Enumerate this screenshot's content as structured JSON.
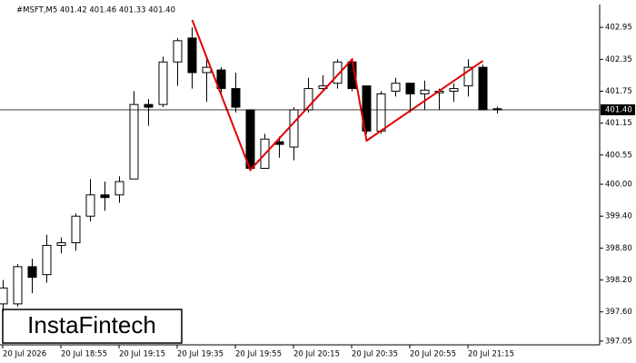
{
  "chart_data": {
    "type": "candlestick",
    "title": "#MSFT,M5  401.42 401.46 401.33 401.40",
    "watermark": "InstaFintech",
    "categories": [
      "20 Jul 2026",
      null,
      null,
      null,
      "20 Jul 18:55",
      null,
      null,
      null,
      "20 Jul 19:15",
      null,
      null,
      null,
      "20 Jul 19:35",
      null,
      null,
      null,
      "20 Jul 19:55",
      null,
      null,
      null,
      "20 Jul 20:15",
      null,
      null,
      null,
      "20 Jul 20:35",
      null,
      null,
      null,
      "20 Jul 20:55",
      null,
      null,
      null,
      "20 Jul 21:15",
      null,
      null
    ],
    "open": [
      397.75,
      397.75,
      398.45,
      398.3,
      398.85,
      398.9,
      399.4,
      399.8,
      399.8,
      400.1,
      401.5,
      401.5,
      402.3,
      402.75,
      402.1,
      402.15,
      401.8,
      401.4,
      400.3,
      400.8,
      400.7,
      401.4,
      401.8,
      401.9,
      402.3,
      401.85,
      401.0,
      401.75,
      401.9,
      401.7,
      401.72,
      401.75,
      401.85,
      402.2,
      401.42
    ],
    "high": [
      398.2,
      398.5,
      398.6,
      399.05,
      399.0,
      399.45,
      400.1,
      400.05,
      400.15,
      401.75,
      401.6,
      402.4,
      402.75,
      402.95,
      402.35,
      402.2,
      402.1,
      401.4,
      400.95,
      400.9,
      401.45,
      402.0,
      402.05,
      402.35,
      402.35,
      401.85,
      401.75,
      402.0,
      401.9,
      401.95,
      401.8,
      401.9,
      402.35,
      402.25,
      401.46
    ],
    "low": [
      397.6,
      397.7,
      397.95,
      398.15,
      398.7,
      398.75,
      399.3,
      399.5,
      399.65,
      400.1,
      401.1,
      401.45,
      401.85,
      401.8,
      401.55,
      401.7,
      401.35,
      400.3,
      400.3,
      400.5,
      400.45,
      401.35,
      401.75,
      401.8,
      401.75,
      400.95,
      400.95,
      401.65,
      401.35,
      401.4,
      401.4,
      401.55,
      401.65,
      401.4,
      401.33
    ],
    "close": [
      398.05,
      398.45,
      398.25,
      398.85,
      398.9,
      399.4,
      399.8,
      399.75,
      400.05,
      401.5,
      401.45,
      402.3,
      402.7,
      402.1,
      402.2,
      401.8,
      401.45,
      400.3,
      400.85,
      400.75,
      401.4,
      401.8,
      401.85,
      402.3,
      401.8,
      401.0,
      401.7,
      401.9,
      401.7,
      401.77,
      401.75,
      401.8,
      402.2,
      401.4,
      401.4
    ],
    "up_color": "#ffffff",
    "down_color": "#000000",
    "pattern": {
      "color": "#e00000",
      "x": [
        13,
        17,
        24,
        25,
        33
      ],
      "values": [
        403.09,
        400.27,
        402.35,
        400.82,
        402.32
      ]
    },
    "price_line": {
      "value": 401.4,
      "label": "401.40"
    },
    "ylim": [
      396.98,
      403.38
    ],
    "yticks": [
      402.95,
      402.35,
      401.75,
      401.15,
      400.55,
      {
        "value": 400.0,
        "label": "400.00"
      },
      {
        "value": 399.4,
        "label": "399.40"
      },
      {
        "value": 398.8,
        "label": "398.80"
      },
      {
        "value": 398.2,
        "label": "398.20"
      },
      {
        "value": 397.6,
        "label": "397.60"
      },
      397.05
    ]
  }
}
